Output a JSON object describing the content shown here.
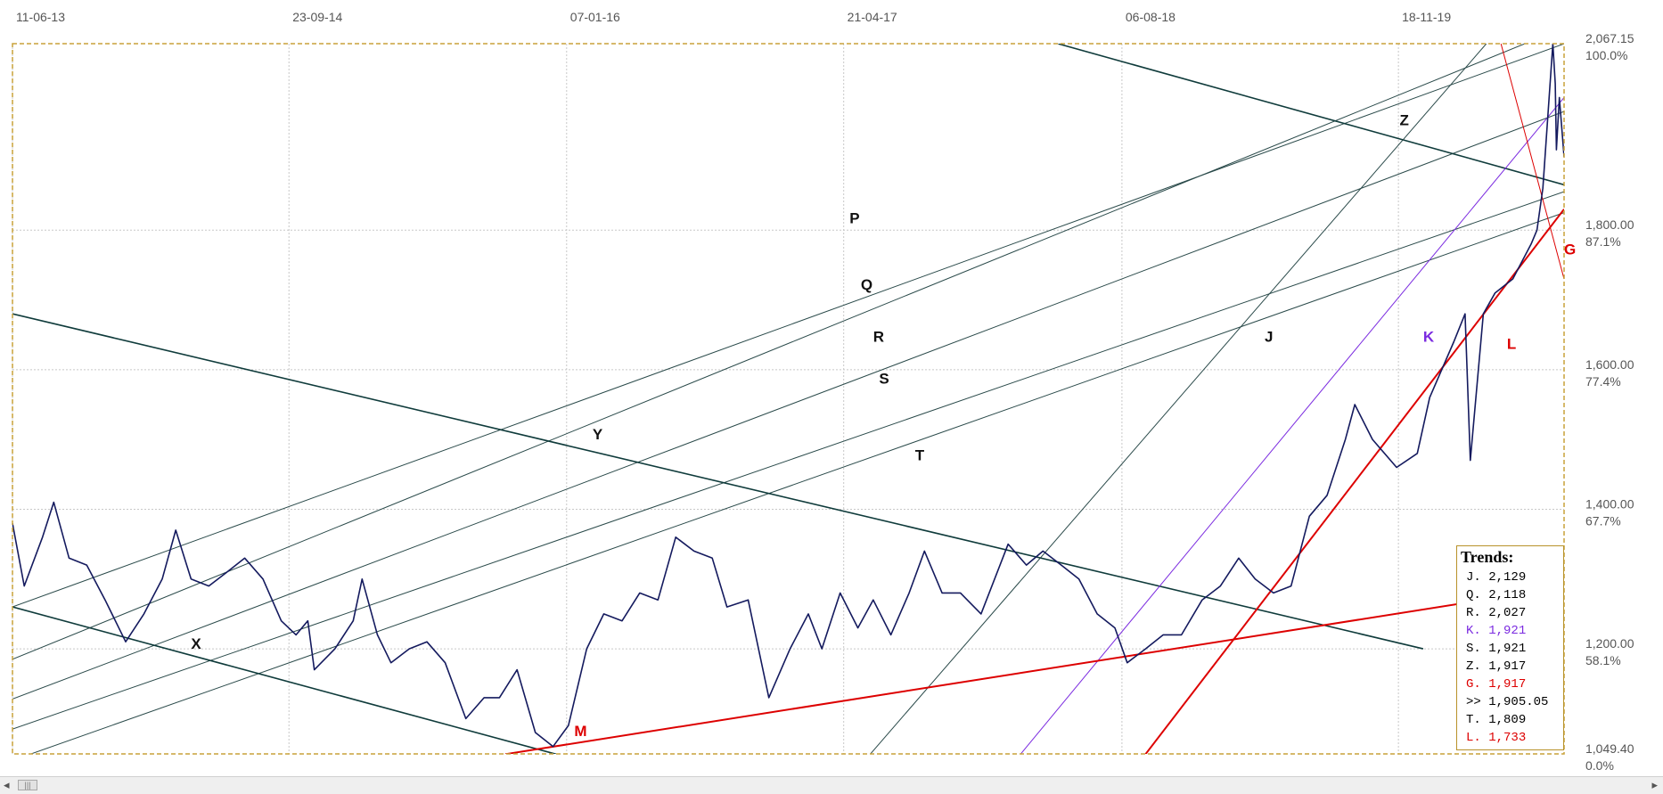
{
  "colors": {
    "price": "#141a5e",
    "trend_dark": "#0f3b3b",
    "trend_thin": "#2a4a4a",
    "trend_red": "#dd0000",
    "trend_purple": "#7b2be0",
    "frame": "#c8a23a",
    "grid": "#c8c8c8"
  },
  "chart_data": {
    "type": "line",
    "title": "",
    "x_ticks": [
      "11-06-13",
      "23-09-14",
      "07-01-16",
      "21-04-17",
      "06-08-18",
      "18-11-19"
    ],
    "y_ticks": [
      {
        "price": "2,067.15",
        "pct": "100.0%"
      },
      {
        "price": "1,800.00",
        "pct": "87.1%"
      },
      {
        "price": "1,600.00",
        "pct": "77.4%"
      },
      {
        "price": "1,400.00",
        "pct": "67.7%"
      },
      {
        "price": "1,200.00",
        "pct": "58.1%"
      },
      {
        "price": "1,049.40",
        "pct": "0.0%"
      }
    ],
    "ylim": [
      1049.4,
      2067.15
    ],
    "xlim": [
      "2013-06-11",
      "2020-08-25"
    ],
    "grid": true,
    "series": [
      {
        "type": "price",
        "points": [
          [
            "2013-06-11",
            1380
          ],
          [
            "2013-07-01",
            1290
          ],
          [
            "2013-08-01",
            1360
          ],
          [
            "2013-08-20",
            1410
          ],
          [
            "2013-09-15",
            1330
          ],
          [
            "2013-10-15",
            1320
          ],
          [
            "2013-11-15",
            1270
          ],
          [
            "2013-12-20",
            1210
          ],
          [
            "2014-01-20",
            1250
          ],
          [
            "2014-02-20",
            1300
          ],
          [
            "2014-03-15",
            1370
          ],
          [
            "2014-04-10",
            1300
          ],
          [
            "2014-05-10",
            1290
          ],
          [
            "2014-06-10",
            1310
          ],
          [
            "2014-07-10",
            1330
          ],
          [
            "2014-08-10",
            1300
          ],
          [
            "2014-09-10",
            1240
          ],
          [
            "2014-10-05",
            1220
          ],
          [
            "2014-10-25",
            1240
          ],
          [
            "2014-11-05",
            1170
          ],
          [
            "2014-12-10",
            1200
          ],
          [
            "2015-01-10",
            1240
          ],
          [
            "2015-01-25",
            1300
          ],
          [
            "2015-02-20",
            1220
          ],
          [
            "2015-03-15",
            1180
          ],
          [
            "2015-04-15",
            1200
          ],
          [
            "2015-05-15",
            1210
          ],
          [
            "2015-06-15",
            1180
          ],
          [
            "2015-07-20",
            1100
          ],
          [
            "2015-08-20",
            1130
          ],
          [
            "2015-09-15",
            1130
          ],
          [
            "2015-10-15",
            1170
          ],
          [
            "2015-11-15",
            1080
          ],
          [
            "2015-12-15",
            1060
          ],
          [
            "2016-01-10",
            1090
          ],
          [
            "2016-02-10",
            1200
          ],
          [
            "2016-03-10",
            1250
          ],
          [
            "2016-04-10",
            1240
          ],
          [
            "2016-05-10",
            1280
          ],
          [
            "2016-06-10",
            1270
          ],
          [
            "2016-07-10",
            1360
          ],
          [
            "2016-08-10",
            1340
          ],
          [
            "2016-09-10",
            1330
          ],
          [
            "2016-10-05",
            1260
          ],
          [
            "2016-11-10",
            1270
          ],
          [
            "2016-12-15",
            1130
          ],
          [
            "2017-01-20",
            1200
          ],
          [
            "2017-02-20",
            1250
          ],
          [
            "2017-03-15",
            1200
          ],
          [
            "2017-04-15",
            1280
          ],
          [
            "2017-05-15",
            1230
          ],
          [
            "2017-06-10",
            1270
          ],
          [
            "2017-07-10",
            1220
          ],
          [
            "2017-08-10",
            1280
          ],
          [
            "2017-09-05",
            1340
          ],
          [
            "2017-10-05",
            1280
          ],
          [
            "2017-11-05",
            1280
          ],
          [
            "2017-12-10",
            1250
          ],
          [
            "2018-01-25",
            1350
          ],
          [
            "2018-02-25",
            1320
          ],
          [
            "2018-03-25",
            1340
          ],
          [
            "2018-04-25",
            1320
          ],
          [
            "2018-05-25",
            1300
          ],
          [
            "2018-06-25",
            1250
          ],
          [
            "2018-07-25",
            1230
          ],
          [
            "2018-08-15",
            1180
          ],
          [
            "2018-09-15",
            1200
          ],
          [
            "2018-10-15",
            1220
          ],
          [
            "2018-11-15",
            1220
          ],
          [
            "2018-12-20",
            1270
          ],
          [
            "2019-01-20",
            1290
          ],
          [
            "2019-02-20",
            1330
          ],
          [
            "2019-03-20",
            1300
          ],
          [
            "2019-04-20",
            1280
          ],
          [
            "2019-05-20",
            1290
          ],
          [
            "2019-06-20",
            1390
          ],
          [
            "2019-07-20",
            1420
          ],
          [
            "2019-08-20",
            1500
          ],
          [
            "2019-09-05",
            1550
          ],
          [
            "2019-10-05",
            1500
          ],
          [
            "2019-11-15",
            1460
          ],
          [
            "2019-12-20",
            1480
          ],
          [
            "2020-01-10",
            1560
          ],
          [
            "2020-02-20",
            1640
          ],
          [
            "2020-03-10",
            1680
          ],
          [
            "2020-03-19",
            1470
          ],
          [
            "2020-04-10",
            1680
          ],
          [
            "2020-04-30",
            1710
          ],
          [
            "2020-05-30",
            1730
          ],
          [
            "2020-06-30",
            1780
          ],
          [
            "2020-07-10",
            1800
          ],
          [
            "2020-07-20",
            1860
          ],
          [
            "2020-08-06",
            2067
          ],
          [
            "2020-08-10",
            2010
          ],
          [
            "2020-08-12",
            1915
          ],
          [
            "2020-08-17",
            1990
          ],
          [
            "2020-08-25",
            1905
          ]
        ]
      }
    ],
    "trendlines": [
      {
        "label": "P",
        "label_pos": [
          "2017-05-01",
          1810
        ],
        "color_key": "trend_thin",
        "width": 1,
        "p1": [
          "2013-06-11",
          1260
        ],
        "p2": [
          "2020-08-25",
          2067
        ]
      },
      {
        "label": "Q",
        "label_pos": [
          "2017-05-20",
          1715
        ],
        "color_key": "trend_thin",
        "width": 1,
        "p1": [
          "2013-06-11",
          1185
        ],
        "p2": [
          "2020-08-25",
          2090
        ]
      },
      {
        "label": "R",
        "label_pos": [
          "2017-06-10",
          1640
        ],
        "color_key": "trend_thin",
        "width": 1,
        "p1": [
          "2013-06-11",
          1128
        ],
        "p2": [
          "2020-08-25",
          1970
        ]
      },
      {
        "label": "S",
        "label_pos": [
          "2017-06-20",
          1580
        ],
        "color_key": "trend_thin",
        "width": 1,
        "p1": [
          "2013-06-11",
          1085
        ],
        "p2": [
          "2020-08-25",
          1855
        ]
      },
      {
        "label": "T",
        "label_pos": [
          "2017-08-20",
          1470
        ],
        "color_key": "trend_thin",
        "width": 1,
        "p1": [
          "2013-06-11",
          1040
        ],
        "p2": [
          "2020-08-25",
          1825
        ]
      },
      {
        "label": "X",
        "label_pos": [
          "2014-04-10",
          1200
        ],
        "color_key": "trend_dark",
        "width": 1.6,
        "p1": [
          "2013-06-11",
          1260
        ],
        "p2": [
          "2015-12-20",
          1049
        ]
      },
      {
        "label": "Y",
        "label_pos": [
          "2016-02-20",
          1500
        ],
        "color_key": "trend_dark",
        "width": 1.6,
        "p1": [
          "2013-06-11",
          1680
        ],
        "p2": [
          "2019-12-30",
          1200
        ]
      },
      {
        "label": "Z",
        "label_pos": [
          "2019-11-20",
          1950
        ],
        "color_key": "trend_dark",
        "width": 1.6,
        "p1": [
          "2018-04-20",
          2067
        ],
        "p2": [
          "2020-08-25",
          1865
        ]
      },
      {
        "label": "J",
        "label_pos": [
          "2019-04-05",
          1640
        ],
        "color_key": "trend_thin",
        "width": 1,
        "p1": [
          "2017-06-05",
          1049
        ],
        "p2": [
          "2020-04-15",
          2067
        ]
      },
      {
        "label": "K",
        "label_pos": [
          "2019-12-30",
          1640
        ],
        "color_key": "trend_purple",
        "width": 1,
        "p1": [
          "2018-02-15",
          1049
        ],
        "p2": [
          "2020-08-25",
          1990
        ]
      },
      {
        "label": "L",
        "label_pos": [
          "2020-05-20",
          1630
        ],
        "color_key": "trend_red",
        "width": 2,
        "p1": [
          "2018-09-15",
          1049
        ],
        "p2": [
          "2020-08-25",
          1830
        ]
      },
      {
        "label": "M",
        "label_pos": [
          "2016-01-20",
          1075
        ],
        "color_key": "trend_red",
        "width": 2,
        "p1": [
          "2015-09-25",
          1049
        ],
        "p2": [
          "2020-06-25",
          1280
        ]
      },
      {
        "label": "G",
        "label_pos": [
          "2020-08-25",
          1765
        ],
        "color_key": "trend_red",
        "width": 1,
        "p1": [
          "2020-05-10",
          2067
        ],
        "p2": [
          "2020-08-25",
          1730
        ]
      }
    ]
  },
  "trends": {
    "title": "Trends:",
    "rows": [
      {
        "label": "J.",
        "value": "2,129",
        "color": "#000000"
      },
      {
        "label": "Q.",
        "value": "2,118",
        "color": "#000000"
      },
      {
        "label": "R.",
        "value": "2,027",
        "color": "#000000"
      },
      {
        "label": "K.",
        "value": "1,921",
        "color": "#7b2be0"
      },
      {
        "label": "S.",
        "value": "1,921",
        "color": "#000000"
      },
      {
        "label": "Z.",
        "value": "1,917",
        "color": "#000000"
      },
      {
        "label": "G.",
        "value": "1,917",
        "color": "#dd0000"
      },
      {
        "label": ">>",
        "value": "1,905.05",
        "color": "#000000"
      },
      {
        "label": "T.",
        "value": "1,809",
        "color": "#000000"
      },
      {
        "label": "L.",
        "value": "1,733",
        "color": "#dd0000"
      }
    ]
  },
  "scrollbar": {
    "left_arrow": "◂",
    "right_arrow": "▸",
    "thumb": "|||"
  }
}
